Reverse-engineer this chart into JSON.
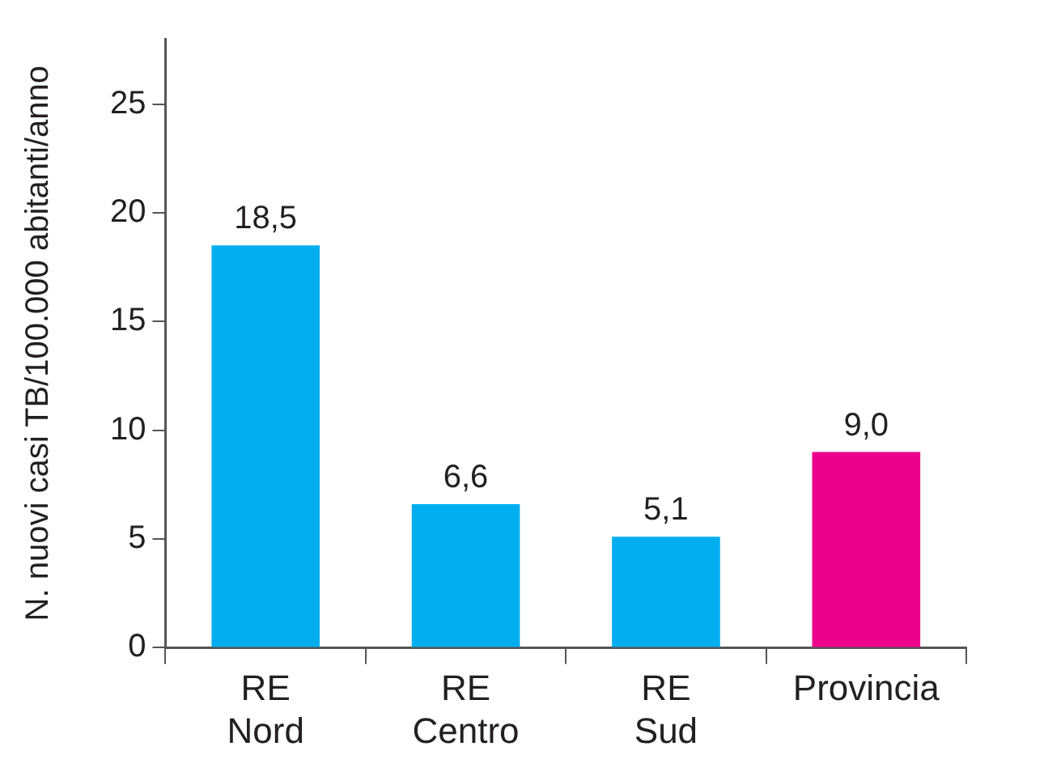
{
  "chart_data": {
    "type": "bar",
    "ylabel": "N. nuovi casi TB/100.000 abitanti/anno",
    "categories": [
      "RE Nord",
      "RE Centro",
      "RE Sud",
      "Provincia"
    ],
    "values": [
      18.5,
      6.6,
      5.1,
      9.0
    ],
    "colors": [
      "#00aeef",
      "#00aeef",
      "#00aeef",
      "#ec008c"
    ],
    "value_labels": [
      "18,5",
      "6,6",
      "5,1",
      "9,0"
    ],
    "ylim": [
      0,
      28
    ],
    "yticks": [
      0,
      5,
      10,
      15,
      20,
      25
    ]
  }
}
